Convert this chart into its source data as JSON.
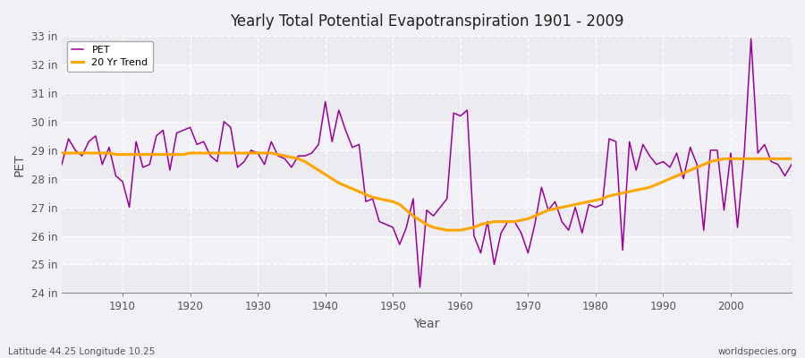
{
  "title": "Yearly Total Potential Evapotranspiration 1901 - 2009",
  "xlabel": "Year",
  "ylabel": "PET",
  "caption_left": "Latitude 44.25 Longitude 10.25",
  "caption_right": "worldspecies.org",
  "pet_color": "#990099",
  "trend_color": "#FFA500",
  "bg_color": "#F0F0F5",
  "ylim": [
    24,
    33
  ],
  "yticks": [
    24,
    25,
    26,
    27,
    28,
    29,
    30,
    31,
    32,
    33
  ],
  "ytick_labels": [
    "24 in",
    "25 in",
    "26 in",
    "27 in",
    "28 in",
    "29 in",
    "30 in",
    "31 in",
    "32 in",
    "33 in"
  ],
  "years": [
    1901,
    1902,
    1903,
    1904,
    1905,
    1906,
    1907,
    1908,
    1909,
    1910,
    1911,
    1912,
    1913,
    1914,
    1915,
    1916,
    1917,
    1918,
    1919,
    1920,
    1921,
    1922,
    1923,
    1924,
    1925,
    1926,
    1927,
    1928,
    1929,
    1930,
    1931,
    1932,
    1933,
    1934,
    1935,
    1936,
    1937,
    1938,
    1939,
    1940,
    1941,
    1942,
    1943,
    1944,
    1945,
    1946,
    1947,
    1948,
    1949,
    1950,
    1951,
    1952,
    1953,
    1954,
    1955,
    1956,
    1957,
    1958,
    1959,
    1960,
    1961,
    1962,
    1963,
    1964,
    1965,
    1966,
    1967,
    1968,
    1969,
    1970,
    1971,
    1972,
    1973,
    1974,
    1975,
    1976,
    1977,
    1978,
    1979,
    1980,
    1981,
    1982,
    1983,
    1984,
    1985,
    1986,
    1987,
    1988,
    1989,
    1990,
    1991,
    1992,
    1993,
    1994,
    1995,
    1996,
    1997,
    1998,
    1999,
    2000,
    2001,
    2002,
    2003,
    2004,
    2005,
    2006,
    2007,
    2008,
    2009
  ],
  "pet": [
    28.5,
    29.4,
    29.0,
    28.8,
    29.3,
    29.5,
    28.5,
    29.1,
    28.1,
    27.9,
    27.0,
    29.3,
    28.4,
    28.5,
    29.5,
    29.7,
    28.3,
    29.6,
    29.7,
    29.8,
    29.2,
    29.3,
    28.8,
    28.6,
    30.0,
    29.8,
    28.4,
    28.6,
    29.0,
    28.9,
    28.5,
    29.3,
    28.8,
    28.7,
    28.4,
    28.8,
    28.8,
    28.9,
    29.2,
    30.7,
    29.3,
    30.4,
    29.7,
    29.1,
    29.2,
    27.2,
    27.3,
    26.5,
    26.4,
    26.3,
    25.7,
    26.3,
    27.3,
    24.2,
    26.9,
    26.7,
    27.0,
    27.3,
    30.3,
    30.2,
    30.4,
    26.0,
    25.4,
    26.5,
    25.0,
    26.1,
    26.5,
    26.5,
    26.1,
    25.4,
    26.4,
    27.7,
    26.9,
    27.2,
    26.5,
    26.2,
    27.0,
    26.1,
    27.1,
    27.0,
    27.1,
    29.4,
    29.3,
    25.5,
    29.3,
    28.3,
    29.2,
    28.8,
    28.5,
    28.6,
    28.4,
    28.9,
    28.0,
    29.1,
    28.5,
    26.2,
    29.0,
    29.0,
    26.9,
    28.9,
    26.3,
    28.9,
    32.9,
    28.9,
    29.2,
    28.6,
    28.5,
    28.1,
    28.5
  ],
  "trend": [
    28.9,
    28.9,
    28.9,
    28.9,
    28.9,
    28.9,
    28.9,
    28.9,
    28.85,
    28.85,
    28.85,
    28.85,
    28.85,
    28.85,
    28.85,
    28.85,
    28.85,
    28.85,
    28.85,
    28.9,
    28.9,
    28.9,
    28.9,
    28.9,
    28.9,
    28.9,
    28.9,
    28.9,
    28.9,
    28.9,
    28.9,
    28.9,
    28.85,
    28.8,
    28.75,
    28.7,
    28.6,
    28.45,
    28.3,
    28.15,
    28.0,
    27.85,
    27.75,
    27.65,
    27.55,
    27.45,
    27.35,
    27.3,
    27.25,
    27.2,
    27.1,
    26.9,
    26.7,
    26.55,
    26.4,
    26.3,
    26.25,
    26.2,
    26.2,
    26.2,
    26.25,
    26.3,
    26.4,
    26.45,
    26.5,
    26.5,
    26.5,
    26.5,
    26.55,
    26.6,
    26.7,
    26.8,
    26.9,
    26.95,
    27.0,
    27.05,
    27.1,
    27.15,
    27.2,
    27.25,
    27.3,
    27.4,
    27.45,
    27.5,
    27.55,
    27.6,
    27.65,
    27.7,
    27.8,
    27.9,
    28.0,
    28.1,
    28.2,
    28.3,
    28.4,
    28.5,
    28.6,
    28.65,
    28.7,
    28.7,
    28.7,
    28.7,
    28.7,
    28.7,
    28.7,
    28.7,
    28.7,
    28.7,
    28.7
  ]
}
